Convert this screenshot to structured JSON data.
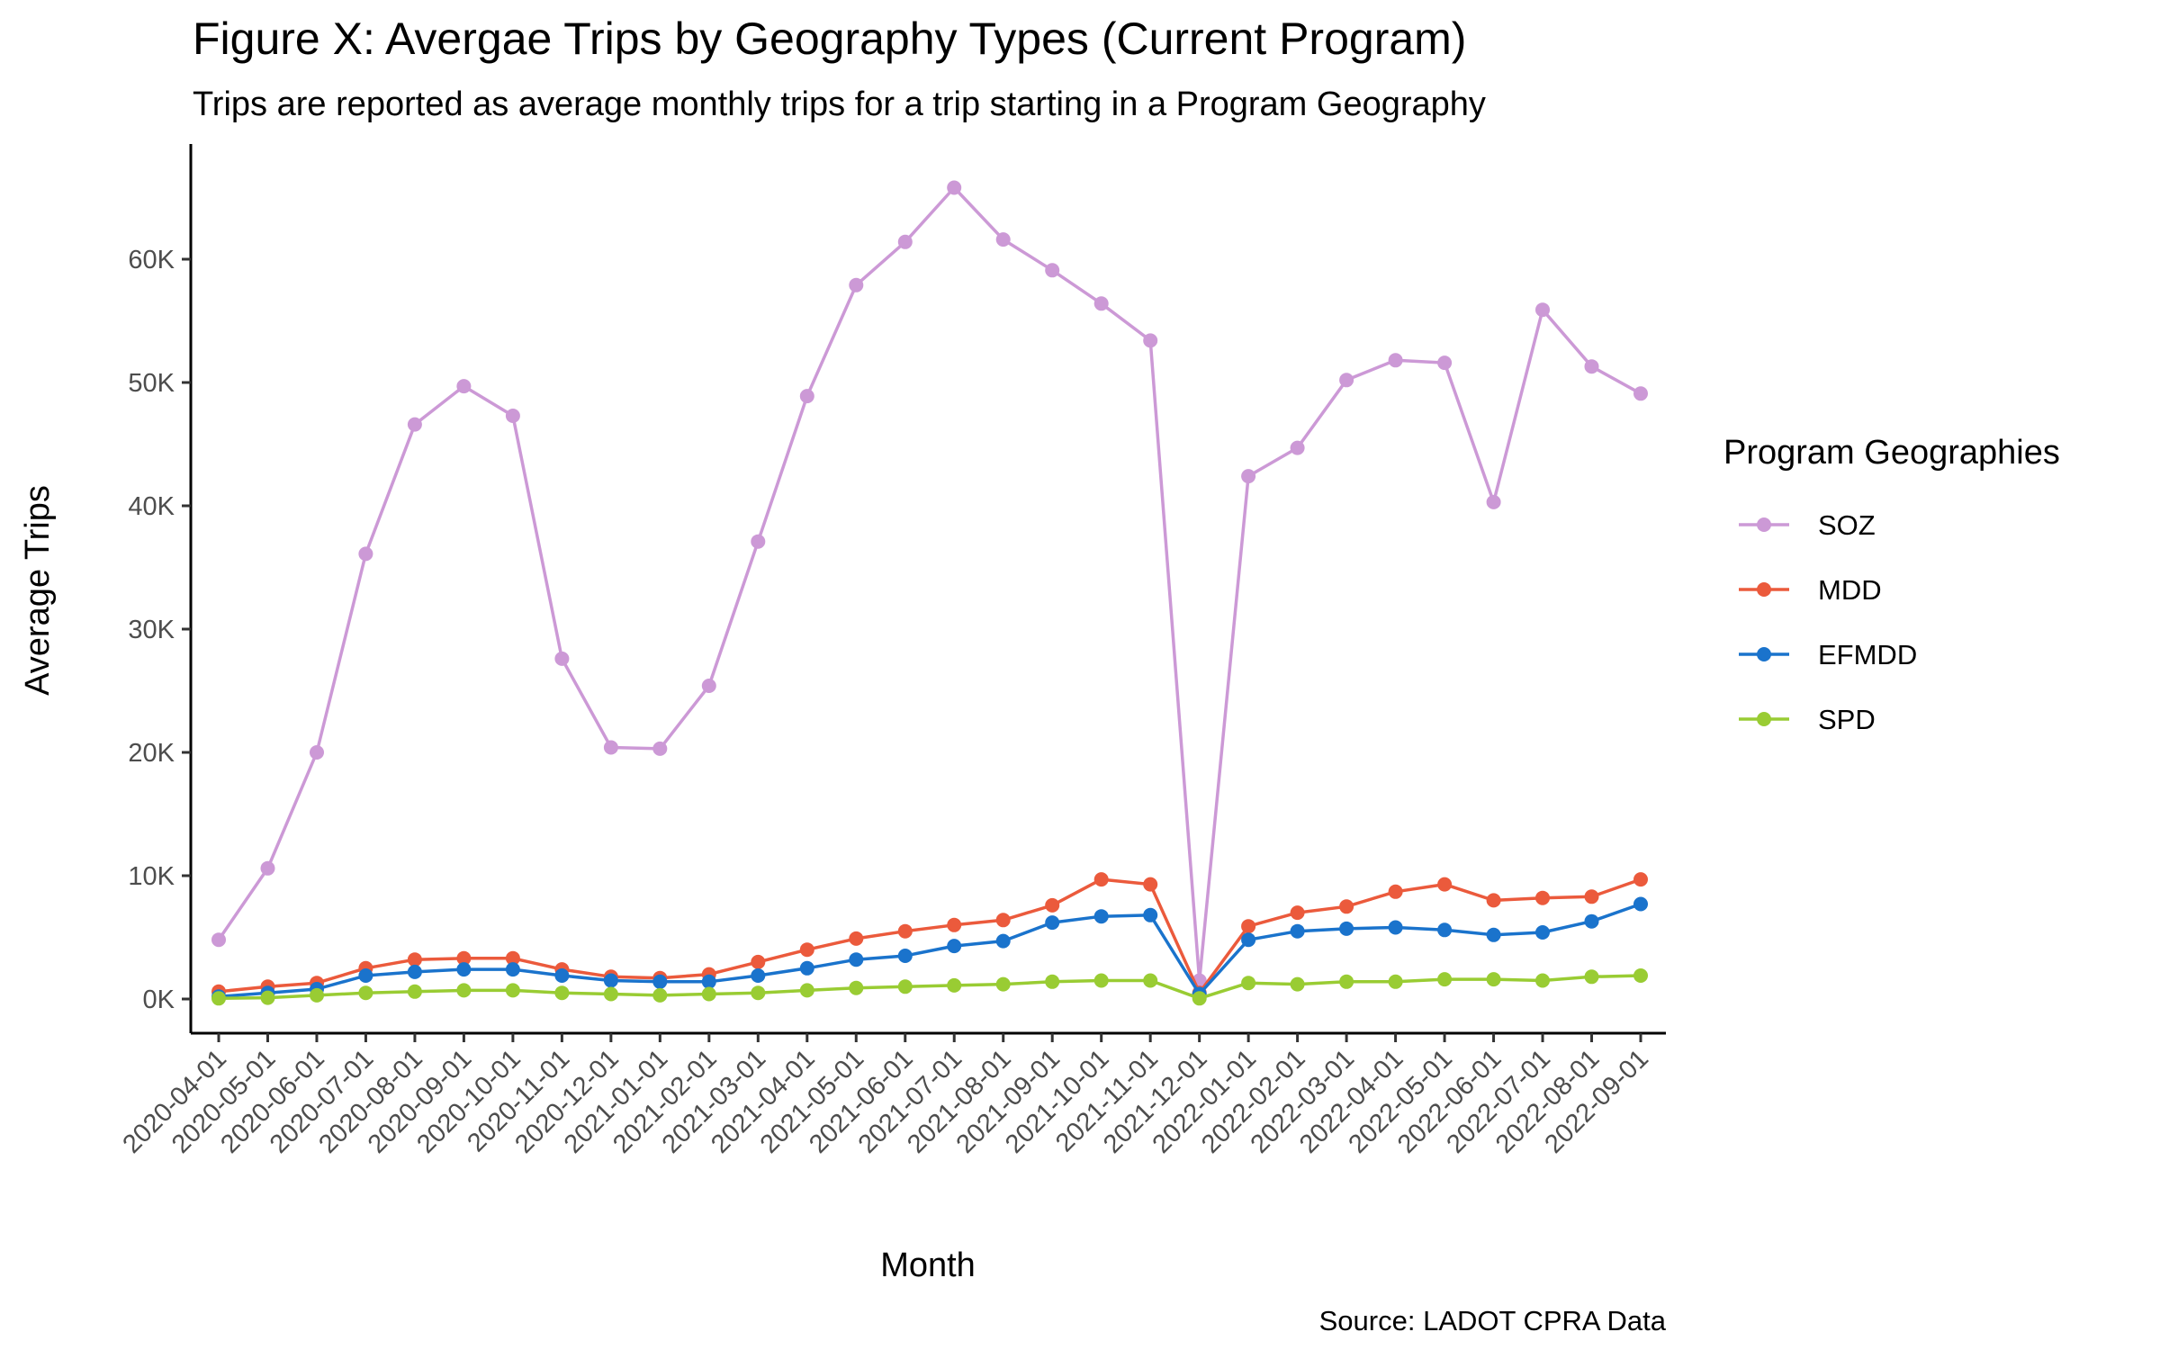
{
  "chart_data": {
    "type": "line",
    "title": "Figure X: Avergae Trips by Geography Types (Current Program)",
    "subtitle": "Trips are reported as average monthly trips for a trip starting in a Program Geography",
    "xlabel": "Month",
    "ylabel": "Average Trips",
    "caption": "Source: LADOT CPRA Data",
    "legend_title": "Program Geographies",
    "legend_position": "right",
    "grid": false,
    "ylim": [
      -3000,
      69000
    ],
    "yticks": [
      0,
      10000,
      20000,
      30000,
      40000,
      50000,
      60000
    ],
    "ytick_labels": [
      "0K",
      "10K",
      "20K",
      "30K",
      "40K",
      "50K",
      "60K"
    ],
    "categories": [
      "2020-04-01",
      "2020-05-01",
      "2020-06-01",
      "2020-07-01",
      "2020-08-01",
      "2020-09-01",
      "2020-10-01",
      "2020-11-01",
      "2020-12-01",
      "2021-01-01",
      "2021-02-01",
      "2021-03-01",
      "2021-04-01",
      "2021-05-01",
      "2021-06-01",
      "2021-07-01",
      "2021-08-01",
      "2021-09-01",
      "2021-10-01",
      "2021-11-01",
      "2021-12-01",
      "2022-01-01",
      "2022-02-01",
      "2022-03-01",
      "2022-04-01",
      "2022-05-01",
      "2022-06-01",
      "2022-07-01",
      "2022-08-01",
      "2022-09-01"
    ],
    "series": [
      {
        "name": "SOZ",
        "color": "#cc99d6",
        "values": [
          4800,
          10600,
          20000,
          36100,
          46600,
          49700,
          47300,
          27600,
          20400,
          20300,
          25400,
          37100,
          48900,
          57900,
          61400,
          65800,
          61600,
          59100,
          56400,
          53400,
          1500,
          42400,
          44700,
          50200,
          51800,
          51600,
          40300,
          55900,
          51300,
          49100
        ]
      },
      {
        "name": "MDD",
        "color": "#eb5a3c",
        "values": [
          600,
          1000,
          1300,
          2500,
          3200,
          3300,
          3300,
          2400,
          1800,
          1700,
          2000,
          3000,
          4000,
          4900,
          5500,
          6000,
          6400,
          7600,
          9700,
          9300,
          500,
          5900,
          7000,
          7500,
          8700,
          9300,
          8000,
          8200,
          8300,
          9700
        ]
      },
      {
        "name": "EFMDD",
        "color": "#1a73cc",
        "values": [
          200,
          500,
          800,
          1900,
          2200,
          2400,
          2400,
          1900,
          1500,
          1400,
          1400,
          1900,
          2500,
          3200,
          3500,
          4300,
          4700,
          6200,
          6700,
          6800,
          400,
          4800,
          5500,
          5700,
          5800,
          5600,
          5200,
          5400,
          6300,
          7700
        ]
      },
      {
        "name": "SPD",
        "color": "#99cc33",
        "values": [
          50,
          100,
          300,
          500,
          600,
          700,
          700,
          500,
          400,
          300,
          400,
          500,
          700,
          900,
          1000,
          1100,
          1200,
          1400,
          1500,
          1500,
          50,
          1300,
          1200,
          1400,
          1400,
          1600,
          1600,
          1500,
          1800,
          1900
        ]
      }
    ]
  }
}
